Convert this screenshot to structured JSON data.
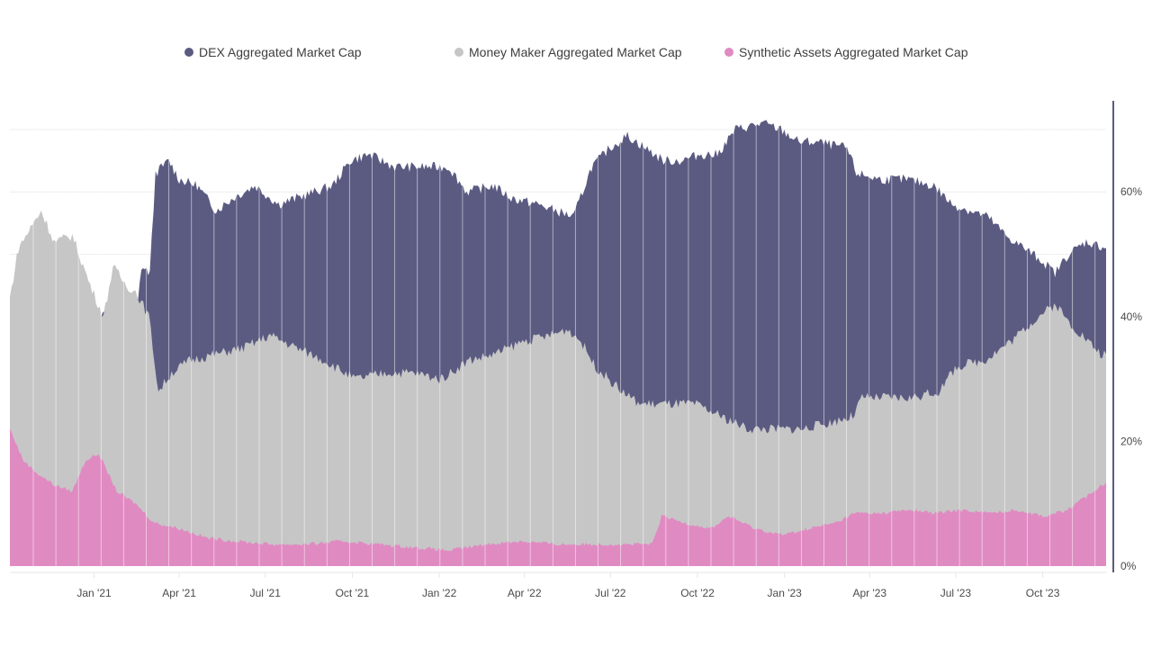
{
  "chart_data": {
    "type": "area",
    "title": "",
    "xlabel": "",
    "ylabel": "",
    "overlapping": true,
    "x_range": [
      "2020-10-04",
      "2023-12-07"
    ],
    "ylim": [
      0,
      75
    ],
    "grid": true,
    "legend_position": "top",
    "y_ticks": [
      {
        "value": 0,
        "label": "0%"
      },
      {
        "value": 20,
        "label": "20%"
      },
      {
        "value": 40,
        "label": "40%"
      },
      {
        "value": 60,
        "label": "60%"
      }
    ],
    "x_ticks": [
      {
        "date": "2021-01-01",
        "label": "Jan '21"
      },
      {
        "date": "2021-04-01",
        "label": "Apr '21"
      },
      {
        "date": "2021-07-01",
        "label": "Jul '21"
      },
      {
        "date": "2021-10-01",
        "label": "Oct '21"
      },
      {
        "date": "2022-01-01",
        "label": "Jan '22"
      },
      {
        "date": "2022-04-01",
        "label": "Apr '22"
      },
      {
        "date": "2022-07-01",
        "label": "Jul '22"
      },
      {
        "date": "2022-10-01",
        "label": "Oct '22"
      },
      {
        "date": "2023-01-01",
        "label": "Jan '23"
      },
      {
        "date": "2023-04-01",
        "label": "Apr '23"
      },
      {
        "date": "2023-07-01",
        "label": "Jul '23"
      },
      {
        "date": "2023-10-01",
        "label": "Oct '23"
      }
    ],
    "series": [
      {
        "name": "DEX Aggregated Market Cap",
        "color": "#5b5b82",
        "points": [
          [
            "2020-10-04",
            33
          ],
          [
            "2020-11-01",
            34
          ],
          [
            "2020-12-01",
            36
          ],
          [
            "2020-12-31",
            38
          ],
          [
            "2021-01-31",
            45
          ],
          [
            "2021-02-15",
            40
          ],
          [
            "2021-02-20",
            48
          ],
          [
            "2021-03-01",
            47
          ],
          [
            "2021-03-07",
            63
          ],
          [
            "2021-03-21",
            65
          ],
          [
            "2021-04-01",
            62
          ],
          [
            "2021-04-20",
            61
          ],
          [
            "2021-05-10",
            57
          ],
          [
            "2021-05-28",
            59
          ],
          [
            "2021-06-20",
            61
          ],
          [
            "2021-07-15",
            58
          ],
          [
            "2021-08-03",
            59
          ],
          [
            "2021-08-22",
            60
          ],
          [
            "2021-09-10",
            61
          ],
          [
            "2021-09-29",
            65
          ],
          [
            "2021-10-18",
            66
          ],
          [
            "2021-11-15",
            64
          ],
          [
            "2021-12-14",
            64
          ],
          [
            "2022-01-11",
            64
          ],
          [
            "2022-01-30",
            60
          ],
          [
            "2022-02-27",
            61
          ],
          [
            "2022-03-18",
            59
          ],
          [
            "2022-04-15",
            58
          ],
          [
            "2022-05-04",
            57
          ],
          [
            "2022-05-23",
            56
          ],
          [
            "2022-06-11",
            64
          ],
          [
            "2022-06-30",
            67
          ],
          [
            "2022-07-19",
            69
          ],
          [
            "2022-08-07",
            67
          ],
          [
            "2022-08-26",
            65
          ],
          [
            "2022-09-14",
            65
          ],
          [
            "2022-10-03",
            66
          ],
          [
            "2022-10-22",
            66
          ],
          [
            "2022-11-10",
            70
          ],
          [
            "2022-12-09",
            71
          ],
          [
            "2022-12-28",
            70
          ],
          [
            "2023-01-16",
            68
          ],
          [
            "2023-02-04",
            68
          ],
          [
            "2023-03-08",
            67
          ],
          [
            "2023-03-18",
            63
          ],
          [
            "2023-04-12",
            62
          ],
          [
            "2023-05-10",
            62
          ],
          [
            "2023-06-08",
            61
          ],
          [
            "2023-06-27",
            58
          ],
          [
            "2023-07-16",
            57
          ],
          [
            "2023-08-04",
            56
          ],
          [
            "2023-08-23",
            53
          ],
          [
            "2023-09-11",
            51
          ],
          [
            "2023-09-30",
            49
          ],
          [
            "2023-10-14",
            47
          ],
          [
            "2023-10-28",
            50
          ],
          [
            "2023-11-16",
            52
          ],
          [
            "2023-12-07",
            51
          ]
        ]
      },
      {
        "name": "Money Maker Aggregated Market Cap",
        "color": "#c6c6c6",
        "points": [
          [
            "2020-10-04",
            43
          ],
          [
            "2020-10-13",
            51
          ],
          [
            "2020-11-06",
            57
          ],
          [
            "2020-11-20",
            52
          ],
          [
            "2020-12-09",
            53
          ],
          [
            "2020-12-28",
            45
          ],
          [
            "2021-01-11",
            40
          ],
          [
            "2021-01-21",
            48
          ],
          [
            "2021-02-04",
            45
          ],
          [
            "2021-02-14",
            44
          ],
          [
            "2021-02-28",
            40
          ],
          [
            "2021-03-10",
            28
          ],
          [
            "2021-03-24",
            31
          ],
          [
            "2021-04-12",
            33
          ],
          [
            "2021-05-10",
            34
          ],
          [
            "2021-06-08",
            35
          ],
          [
            "2021-07-06",
            37
          ],
          [
            "2021-08-03",
            35
          ],
          [
            "2021-09-01",
            33
          ],
          [
            "2021-10-04",
            30
          ],
          [
            "2021-11-06",
            31
          ],
          [
            "2021-12-05",
            31
          ],
          [
            "2022-01-03",
            30
          ],
          [
            "2022-02-01",
            33
          ],
          [
            "2022-03-01",
            34
          ],
          [
            "2022-03-30",
            36
          ],
          [
            "2022-04-28",
            37
          ],
          [
            "2022-05-17",
            38
          ],
          [
            "2022-05-31",
            36
          ],
          [
            "2022-06-15",
            32
          ],
          [
            "2022-07-13",
            28
          ],
          [
            "2022-08-01",
            26
          ],
          [
            "2022-08-30",
            26
          ],
          [
            "2022-09-28",
            26
          ],
          [
            "2022-10-26",
            24
          ],
          [
            "2022-11-24",
            22
          ],
          [
            "2022-12-23",
            22
          ],
          [
            "2023-01-20",
            22
          ],
          [
            "2023-02-18",
            23
          ],
          [
            "2023-03-14",
            24
          ],
          [
            "2023-03-24",
            27
          ],
          [
            "2023-04-17",
            27
          ],
          [
            "2023-05-15",
            27
          ],
          [
            "2023-06-13",
            28
          ],
          [
            "2023-07-02",
            32
          ],
          [
            "2023-07-31",
            33
          ],
          [
            "2023-08-28",
            36
          ],
          [
            "2023-09-26",
            40
          ],
          [
            "2023-10-15",
            42
          ],
          [
            "2023-10-29",
            39
          ],
          [
            "2023-11-12",
            37
          ],
          [
            "2023-12-01",
            34
          ],
          [
            "2023-12-07",
            34
          ]
        ]
      },
      {
        "name": "Synthetic Assets Aggregated Market Cap",
        "color": "#e08ac2",
        "points": [
          [
            "2020-10-04",
            22
          ],
          [
            "2020-10-18",
            17
          ],
          [
            "2020-11-01",
            15
          ],
          [
            "2020-11-20",
            13
          ],
          [
            "2020-12-09",
            12
          ],
          [
            "2020-12-23",
            17
          ],
          [
            "2021-01-06",
            18
          ],
          [
            "2021-01-25",
            12
          ],
          [
            "2021-02-14",
            10
          ],
          [
            "2021-03-05",
            7
          ],
          [
            "2021-04-02",
            6
          ],
          [
            "2021-05-01",
            4.5
          ],
          [
            "2021-05-30",
            4
          ],
          [
            "2021-07-07",
            3.5
          ],
          [
            "2021-08-14",
            3.5
          ],
          [
            "2021-09-21",
            4
          ],
          [
            "2021-10-29",
            3.5
          ],
          [
            "2021-12-05",
            3
          ],
          [
            "2022-01-12",
            2.5
          ],
          [
            "2022-02-19",
            3.5
          ],
          [
            "2022-03-29",
            4
          ],
          [
            "2022-05-06",
            3.5
          ],
          [
            "2022-06-13",
            3.5
          ],
          [
            "2022-07-21",
            3.5
          ],
          [
            "2022-08-14",
            3.5
          ],
          [
            "2022-08-24",
            8
          ],
          [
            "2022-09-16",
            7
          ],
          [
            "2022-10-15",
            6
          ],
          [
            "2022-11-03",
            8
          ],
          [
            "2022-12-01",
            6
          ],
          [
            "2022-12-30",
            5
          ],
          [
            "2023-01-27",
            6
          ],
          [
            "2023-02-25",
            7
          ],
          [
            "2023-03-16",
            8.5
          ],
          [
            "2023-04-14",
            8.5
          ],
          [
            "2023-05-13",
            9
          ],
          [
            "2023-06-10",
            8.5
          ],
          [
            "2023-07-09",
            9
          ],
          [
            "2023-08-07",
            8.5
          ],
          [
            "2023-09-04",
            9
          ],
          [
            "2023-10-03",
            8
          ],
          [
            "2023-10-27",
            9
          ],
          [
            "2023-11-10",
            10.5
          ],
          [
            "2023-11-24",
            12
          ],
          [
            "2023-12-07",
            13.5
          ]
        ]
      }
    ]
  }
}
